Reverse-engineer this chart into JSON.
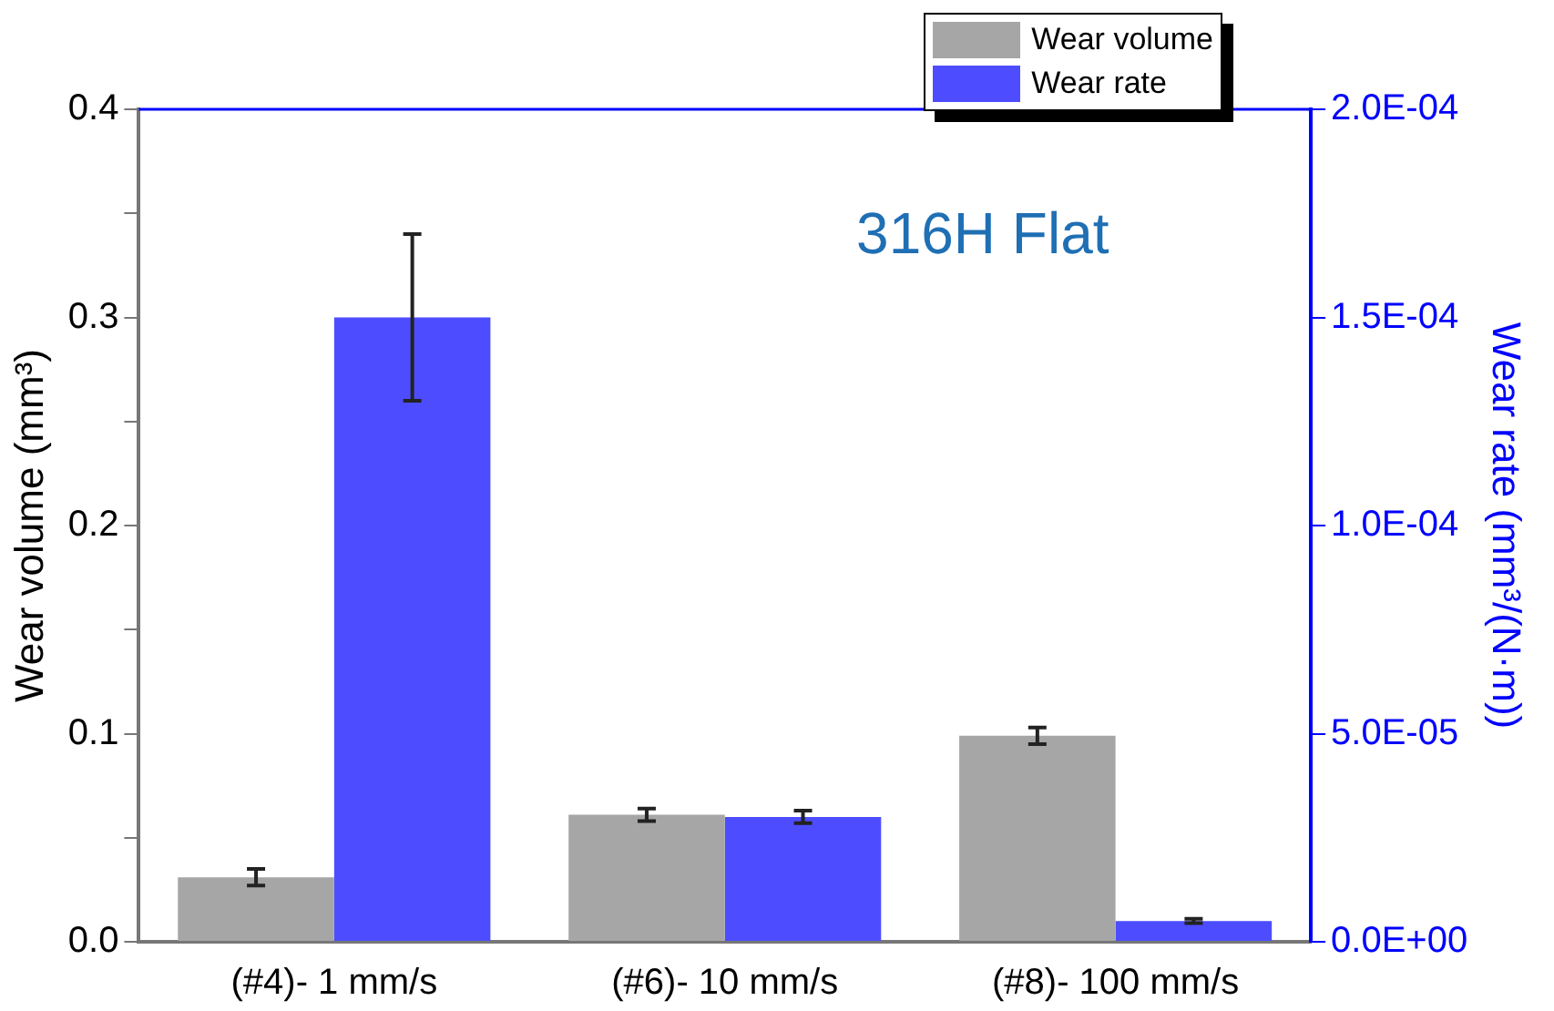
{
  "chart_data": {
    "type": "bar",
    "categories": [
      "(#4)- 1 mm/s",
      "(#6)- 10 mm/s",
      "(#8)- 100 mm/s"
    ],
    "series": [
      {
        "name": "Wear volume",
        "color": "#a6a6a6",
        "values": [
          0.031,
          0.061,
          0.099
        ],
        "errors": [
          0.004,
          0.003,
          0.004
        ]
      },
      {
        "name": "Wear rate",
        "color": "#4d4dff",
        "axis": "y2",
        "values": [
          0.00015,
          3e-05,
          5e-06
        ],
        "errors": [
          2e-05,
          1.5e-06,
          5e-07
        ]
      }
    ],
    "ylabel": "Wear volume (mm³)",
    "y2label": "Wear rate (mm³/(N·m))",
    "ylim": [
      0,
      0.4
    ],
    "yticks": [
      {
        "value": 0,
        "label": "0.0"
      },
      {
        "value": 0.05,
        "label": null
      },
      {
        "value": 0.1,
        "label": "0.1"
      },
      {
        "value": 0.15,
        "label": null
      },
      {
        "value": 0.2,
        "label": "0.2"
      },
      {
        "value": 0.25,
        "label": null
      },
      {
        "value": 0.3,
        "label": "0.3"
      },
      {
        "value": 0.35,
        "label": null
      },
      {
        "value": 0.4,
        "label": "0.4"
      }
    ],
    "y2lim": [
      0,
      0.0002
    ],
    "y2ticks": [
      {
        "value": 0,
        "label": "0.0E+00"
      },
      {
        "value": 5e-05,
        "label": "5.0E-05"
      },
      {
        "value": 0.0001,
        "label": "1.0E-04"
      },
      {
        "value": 0.00015,
        "label": "1.5E-04"
      },
      {
        "value": 0.0002,
        "label": "2.0E-04"
      }
    ],
    "annotations": [
      "316H Flat"
    ],
    "legend": "top right",
    "grid": false
  }
}
